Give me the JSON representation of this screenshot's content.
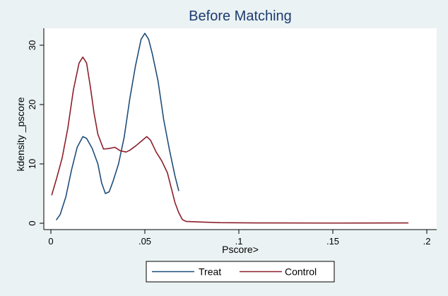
{
  "chart_data": {
    "type": "line",
    "title": "Before Matching",
    "xlabel": "Pscore>",
    "ylabel": "kdensity _pscore",
    "xlim": [
      0,
      0.2
    ],
    "ylim": [
      0,
      33
    ],
    "x_ticks": [
      {
        "value": 0,
        "label": "0"
      },
      {
        "value": 0.05,
        "label": ".05"
      },
      {
        "value": 0.1,
        "label": ".1"
      },
      {
        "value": 0.15,
        "label": ".15"
      },
      {
        "value": 0.2,
        "label": ".2"
      }
    ],
    "y_ticks": [
      {
        "value": 0,
        "label": "0"
      },
      {
        "value": 10,
        "label": "10"
      },
      {
        "value": 20,
        "label": "20"
      },
      {
        "value": 30,
        "label": "30"
      }
    ],
    "grid": false,
    "legend_position": "bottom",
    "series": [
      {
        "name": "Treat",
        "color": "#1f4e79",
        "points": [
          [
            0.003,
            0.6
          ],
          [
            0.005,
            1.5
          ],
          [
            0.008,
            4.5
          ],
          [
            0.011,
            9.0
          ],
          [
            0.014,
            12.8
          ],
          [
            0.017,
            14.6
          ],
          [
            0.019,
            14.3
          ],
          [
            0.022,
            12.6
          ],
          [
            0.025,
            10.0
          ],
          [
            0.027,
            6.8
          ],
          [
            0.029,
            5.0
          ],
          [
            0.031,
            5.3
          ],
          [
            0.033,
            7.0
          ],
          [
            0.036,
            10.0
          ],
          [
            0.039,
            14.5
          ],
          [
            0.042,
            21.0
          ],
          [
            0.045,
            26.5
          ],
          [
            0.048,
            31.0
          ],
          [
            0.05,
            32.0
          ],
          [
            0.052,
            31.0
          ],
          [
            0.054,
            28.5
          ],
          [
            0.057,
            24.0
          ],
          [
            0.06,
            17.5
          ],
          [
            0.063,
            12.5
          ],
          [
            0.066,
            8.0
          ],
          [
            0.068,
            5.5
          ]
        ]
      },
      {
        "name": "Control",
        "color": "#8b1f2b",
        "points": [
          [
            0.0005,
            4.8
          ],
          [
            0.003,
            7.5
          ],
          [
            0.006,
            11.0
          ],
          [
            0.009,
            16.0
          ],
          [
            0.012,
            22.5
          ],
          [
            0.015,
            27.0
          ],
          [
            0.017,
            28.0
          ],
          [
            0.019,
            27.0
          ],
          [
            0.021,
            23.0
          ],
          [
            0.023,
            18.5
          ],
          [
            0.025,
            15.0
          ],
          [
            0.028,
            12.5
          ],
          [
            0.031,
            12.6
          ],
          [
            0.034,
            12.8
          ],
          [
            0.037,
            12.2
          ],
          [
            0.04,
            12.0
          ],
          [
            0.042,
            12.3
          ],
          [
            0.045,
            13.0
          ],
          [
            0.048,
            13.8
          ],
          [
            0.051,
            14.6
          ],
          [
            0.053,
            14.0
          ],
          [
            0.056,
            12.0
          ],
          [
            0.059,
            10.5
          ],
          [
            0.062,
            8.5
          ],
          [
            0.064,
            6.0
          ],
          [
            0.066,
            3.5
          ],
          [
            0.068,
            1.8
          ],
          [
            0.07,
            0.6
          ],
          [
            0.072,
            0.3
          ],
          [
            0.08,
            0.2
          ],
          [
            0.09,
            0.1
          ],
          [
            0.11,
            0.05
          ],
          [
            0.15,
            0.03
          ],
          [
            0.19,
            0.05
          ]
        ]
      }
    ]
  }
}
